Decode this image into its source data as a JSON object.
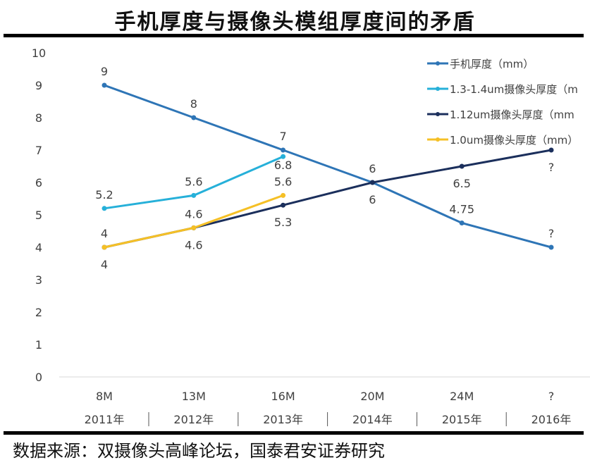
{
  "title": "手机厚度与摄像头模组厚度间的矛盾",
  "source": "数据来源：双摄像头高峰论坛，国泰君安证券研究",
  "chart_data": {
    "type": "line",
    "title": "手机厚度与摄像头模组厚度间的矛盾",
    "categories": [
      [
        "8M",
        "2011年"
      ],
      [
        "13M",
        "2012年"
      ],
      [
        "16M",
        "2013年"
      ],
      [
        "20M",
        "2014年"
      ],
      [
        "24M",
        "2015年"
      ],
      [
        "?",
        "2016年"
      ]
    ],
    "ylim": [
      0,
      10
    ],
    "yticks": [
      "0",
      "1",
      "2",
      "3",
      "4",
      "5",
      "6",
      "7",
      "8",
      "9",
      "10"
    ],
    "legend_position": "top-right",
    "series": [
      {
        "name": "手机厚度（mm）",
        "color": "#2e75b6",
        "values": [
          9,
          8,
          7,
          6,
          4.75,
          4
        ],
        "labels": [
          "9",
          "8",
          "7",
          "6",
          "4.75",
          "?"
        ],
        "label_pos": "above"
      },
      {
        "name": "1.3-1.4um摄像头厚度（m",
        "color": "#26b0d9",
        "values": [
          5.2,
          5.6,
          6.8,
          null,
          null,
          null
        ],
        "labels": [
          "5.2",
          "5.6",
          "6.8",
          null,
          null,
          null
        ],
        "label_pos": "above"
      },
      {
        "name": "1.12um摄像头厚度（mm",
        "color": "#1b2f5c",
        "values": [
          4,
          4.6,
          5.3,
          6,
          6.5,
          7
        ],
        "labels": [
          "4",
          "4.6",
          "5.3",
          "6",
          "6.5",
          "?"
        ],
        "label_pos": "below"
      },
      {
        "name": "1.0um摄像头厚度（mm）",
        "color": "#f5c026",
        "values": [
          4,
          4.6,
          5.6,
          null,
          null,
          null
        ],
        "labels": [
          "4",
          "4.6",
          "5.6",
          null,
          null,
          null
        ],
        "label_pos": "above"
      }
    ]
  }
}
